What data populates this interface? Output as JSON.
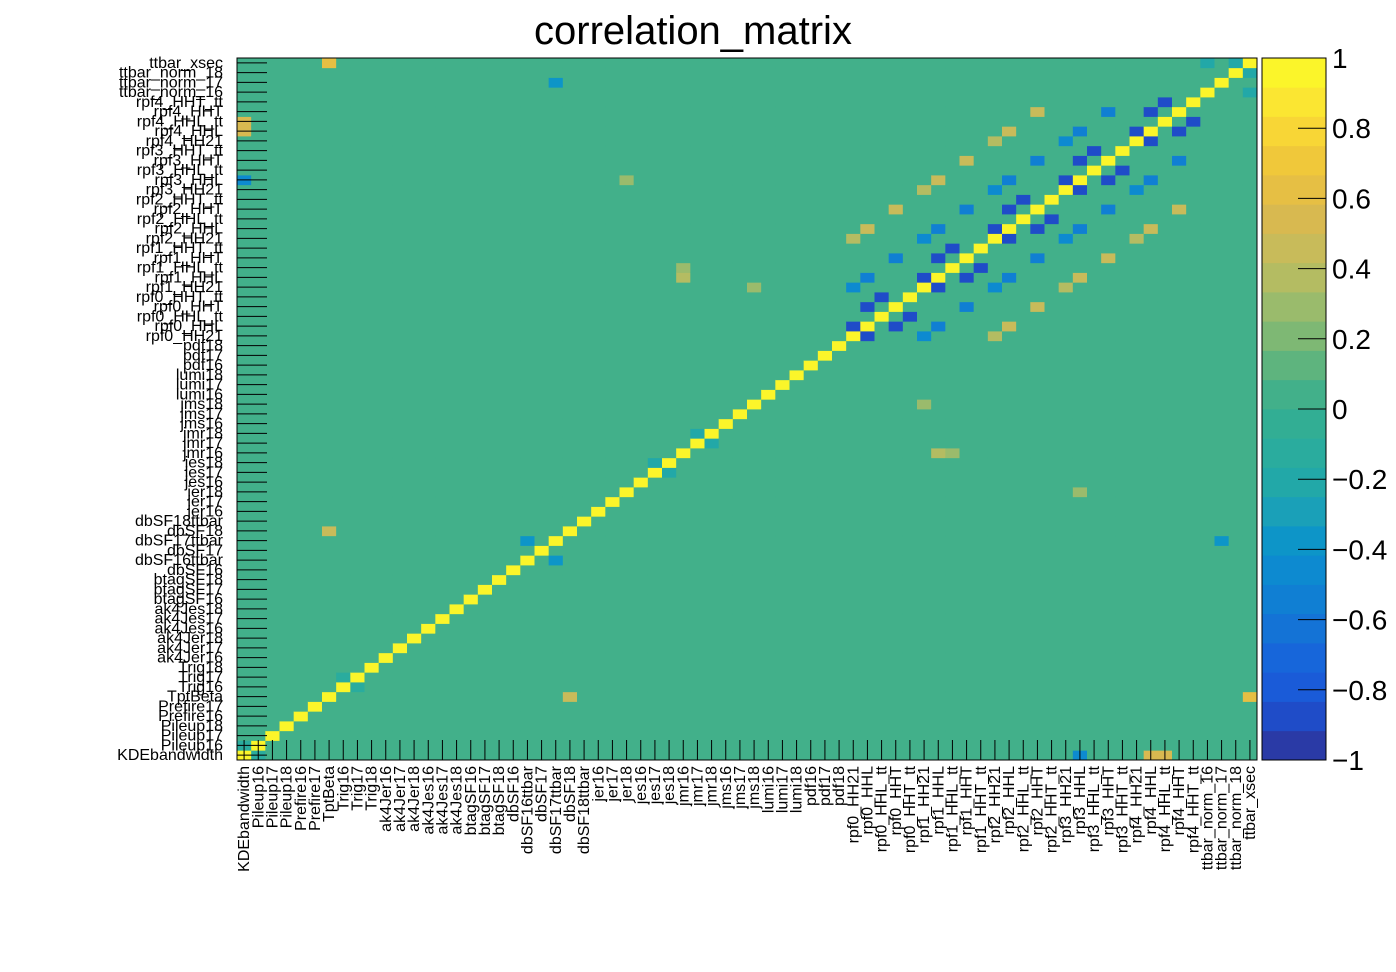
{
  "chart_data": {
    "type": "heatmap",
    "title": "correlation_matrix",
    "zlim": [
      -1,
      1
    ],
    "z_ticks": [
      "−1",
      "−0.8",
      "−0.6",
      "−0.4",
      "−0.2",
      "0",
      "0.2",
      "0.4",
      "0.6",
      "0.8",
      "1"
    ],
    "palette_colors": [
      "#2a3aa6",
      "#1f4cc8",
      "#1a5bd8",
      "#1766da",
      "#1473d6",
      "#107fd3",
      "#0d8ad0",
      "#0d95c8",
      "#1aa0b8",
      "#22a8a8",
      "#2aac9e",
      "#32ae94",
      "#42b08a",
      "#5eb47e",
      "#7eb874",
      "#9abb6c",
      "#b4bc62",
      "#c8bb5a",
      "#d8b950",
      "#e6bf44",
      "#f0c83a",
      "#f8d636",
      "#fbe632",
      "#fbf52a"
    ],
    "variables": [
      "KDEbandwidth",
      "Pileup16",
      "Pileup17",
      "Pileup18",
      "Prefire16",
      "Prefire17",
      "TptBeta",
      "Trig16",
      "Trig17",
      "Trig18",
      "ak4Jer16",
      "ak4Jer17",
      "ak4Jer18",
      "ak4Jes16",
      "ak4Jes17",
      "ak4Jes18",
      "btagSF16",
      "btagSF17",
      "btagSF18",
      "dbSF16",
      "dbSF16ttbar",
      "dbSF17",
      "dbSF17ttbar",
      "dbSF18",
      "dbSF18ttbar",
      "jer16",
      "jer17",
      "jer18",
      "jes16",
      "jes17",
      "jes18",
      "jmr16",
      "jmr17",
      "jmr18",
      "jms16",
      "jms17",
      "jms18",
      "lumi16",
      "lumi17",
      "lumi18",
      "pdf16",
      "pdf17",
      "pdf18",
      "rpf0_HH21",
      "rpf0_HHL",
      "rpf0_HHL_tt",
      "rpf0_HHT",
      "rpf0_HHT_tt",
      "rpf1_HH21",
      "rpf1_HHL",
      "rpf1_HHL_tt",
      "rpf1_HHT",
      "rpf1_HHT_tt",
      "rpf2_HH21",
      "rpf2_HHL",
      "rpf2_HHL_tt",
      "rpf2_HHT",
      "rpf2_HHT_tt",
      "rpf3_HH21",
      "rpf3_HHL",
      "rpf3_HHL_tt",
      "rpf3_HHT",
      "rpf3_HHT_tt",
      "rpf4_HH21",
      "rpf4_HHL",
      "rpf4_HHL_tt",
      "rpf4_HHT",
      "rpf4_HHT_tt",
      "ttbar_norm_16",
      "ttbar_norm_17",
      "ttbar_norm_18",
      "ttbar_xsec"
    ],
    "background_value": 0.02,
    "notable_correlations": [
      {
        "a": "KDEbandwidth",
        "b": "Pileup16",
        "value": -0.1
      },
      {
        "a": "KDEbandwidth",
        "b": "rpf3_HHL",
        "value": -0.5
      },
      {
        "a": "KDEbandwidth",
        "b": "rpf4_HHL",
        "value": 0.55
      },
      {
        "a": "KDEbandwidth",
        "b": "rpf4_HHL_tt",
        "value": 0.5
      },
      {
        "a": "TptBeta",
        "b": "ttbar_xsec",
        "value": 0.65
      },
      {
        "a": "TptBeta",
        "b": "dbSF18",
        "value": 0.45
      },
      {
        "a": "Trig16",
        "b": "Trig17",
        "value": -0.15
      },
      {
        "a": "dbSF16ttbar",
        "b": "dbSF17ttbar",
        "value": -0.35
      },
      {
        "a": "dbSF17ttbar",
        "b": "ttbar_norm_17",
        "value": -0.4
      },
      {
        "a": "ttbar_norm_16",
        "b": "ttbar_xsec",
        "value": -0.2
      },
      {
        "a": "ttbar_norm_18",
        "b": "ttbar_xsec",
        "value": -0.2
      },
      {
        "a": "rpf0_HH21",
        "b": "rpf0_HHL",
        "value": -0.9
      },
      {
        "a": "rpf0_HHL",
        "b": "rpf0_HHT",
        "value": -0.85
      },
      {
        "a": "rpf0_HHL_tt",
        "b": "rpf0_HHT_tt",
        "value": -0.85
      },
      {
        "a": "rpf1_HH21",
        "b": "rpf1_HHL",
        "value": -0.9
      },
      {
        "a": "rpf1_HHL",
        "b": "rpf1_HHT",
        "value": -0.85
      },
      {
        "a": "rpf1_HHL_tt",
        "b": "rpf1_HHT_tt",
        "value": -0.85
      },
      {
        "a": "rpf2_HH21",
        "b": "rpf2_HHL",
        "value": -0.9
      },
      {
        "a": "rpf2_HHL",
        "b": "rpf2_HHT",
        "value": -0.85
      },
      {
        "a": "rpf2_HHL_tt",
        "b": "rpf2_HHT_tt",
        "value": -0.85
      },
      {
        "a": "rpf3_HH21",
        "b": "rpf3_HHL",
        "value": -0.9
      },
      {
        "a": "rpf3_HHL",
        "b": "rpf3_HHT",
        "value": -0.85
      },
      {
        "a": "rpf3_HHL_tt",
        "b": "rpf3_HHT_tt",
        "value": -0.85
      },
      {
        "a": "rpf4_HH21",
        "b": "rpf4_HHL",
        "value": -0.9
      },
      {
        "a": "rpf4_HHL",
        "b": "rpf4_HHT",
        "value": -0.85
      },
      {
        "a": "rpf4_HHL_tt",
        "b": "rpf4_HHT_tt",
        "value": -0.85
      },
      {
        "a": "rpf0_HHL",
        "b": "rpf1_HHL",
        "value": -0.55
      },
      {
        "a": "rpf0_HHT",
        "b": "rpf1_HHT",
        "value": -0.55
      },
      {
        "a": "rpf1_HHL",
        "b": "rpf2_HHL",
        "value": -0.55
      },
      {
        "a": "rpf1_HHT",
        "b": "rpf2_HHT",
        "value": -0.55
      },
      {
        "a": "rpf2_HHL",
        "b": "rpf3_HHL",
        "value": -0.55
      },
      {
        "a": "rpf2_HHT",
        "b": "rpf3_HHT",
        "value": -0.55
      },
      {
        "a": "rpf3_HHL",
        "b": "rpf4_HHL",
        "value": -0.55
      },
      {
        "a": "rpf3_HHT",
        "b": "rpf4_HHT",
        "value": -0.55
      },
      {
        "a": "rpf0_HHL",
        "b": "rpf2_HHL",
        "value": 0.45
      },
      {
        "a": "rpf0_HHT",
        "b": "rpf2_HHT",
        "value": 0.45
      },
      {
        "a": "rpf1_HHL",
        "b": "rpf3_HHL",
        "value": 0.45
      },
      {
        "a": "rpf1_HHT",
        "b": "rpf3_HHT",
        "value": 0.45
      },
      {
        "a": "rpf2_HHL",
        "b": "rpf4_HHL",
        "value": 0.45
      },
      {
        "a": "rpf2_HHT",
        "b": "rpf4_HHT",
        "value": 0.45
      },
      {
        "a": "rpf0_HH21",
        "b": "rpf2_HH21",
        "value": 0.4
      },
      {
        "a": "rpf1_HH21",
        "b": "rpf3_HH21",
        "value": 0.4
      },
      {
        "a": "rpf2_HH21",
        "b": "rpf4_HH21",
        "value": 0.4
      },
      {
        "a": "rpf0_HH21",
        "b": "rpf1_HH21",
        "value": -0.45
      },
      {
        "a": "rpf1_HH21",
        "b": "rpf2_HH21",
        "value": -0.45
      },
      {
        "a": "rpf2_HH21",
        "b": "rpf3_HH21",
        "value": -0.45
      },
      {
        "a": "rpf3_HH21",
        "b": "rpf4_HH21",
        "value": -0.45
      },
      {
        "a": "jms18",
        "b": "rpf1_HH21",
        "value": 0.3
      },
      {
        "a": "jmr18",
        "b": "jmr17",
        "value": -0.2
      },
      {
        "a": "jes18",
        "b": "jes17",
        "value": -0.25
      },
      {
        "a": "jer18",
        "b": "rpf3_HHL",
        "value": 0.3
      },
      {
        "a": "jmr16",
        "b": "rpf1_HHL",
        "value": 0.35
      },
      {
        "a": "jmr16",
        "b": "rpf1_HHL_tt",
        "value": 0.3
      }
    ]
  }
}
